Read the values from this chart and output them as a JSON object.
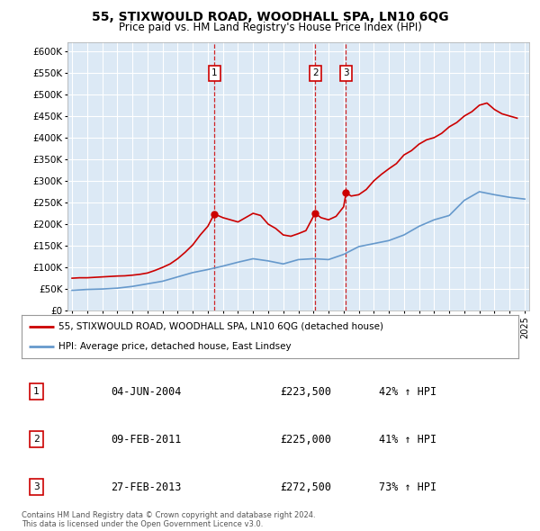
{
  "title": "55, STIXWOULD ROAD, WOODHALL SPA, LN10 6QG",
  "subtitle": "Price paid vs. HM Land Registry's House Price Index (HPI)",
  "legend_line1": "55, STIXWOULD ROAD, WOODHALL SPA, LN10 6QG (detached house)",
  "legend_line2": "HPI: Average price, detached house, East Lindsey",
  "sales": [
    {
      "num": 1,
      "date": "04-JUN-2004",
      "price": 223500,
      "price_str": "£223,500",
      "pct": "42%",
      "dir": "↑",
      "year": 2004.43
    },
    {
      "num": 2,
      "date": "09-FEB-2011",
      "price": 225000,
      "price_str": "£225,000",
      "pct": "41%",
      "dir": "↑",
      "year": 2011.11
    },
    {
      "num": 3,
      "date": "27-FEB-2013",
      "price": 272500,
      "price_str": "£272,500",
      "pct": "73%",
      "dir": "↑",
      "year": 2013.16
    }
  ],
  "footnote1": "Contains HM Land Registry data © Crown copyright and database right 2024.",
  "footnote2": "This data is licensed under the Open Government Licence v3.0.",
  "background_color": "#dce9f5",
  "plot_bg_color": "#dce9f5",
  "red_color": "#cc0000",
  "blue_color": "#6699cc",
  "ylim": [
    0,
    620000
  ],
  "yticks": [
    0,
    50000,
    100000,
    150000,
    200000,
    250000,
    300000,
    350000,
    400000,
    450000,
    500000,
    550000,
    600000
  ],
  "hpi_years": [
    1995,
    1996,
    1997,
    1998,
    1999,
    2000,
    2001,
    2002,
    2003,
    2004,
    2005,
    2006,
    2007,
    2008,
    2009,
    2010,
    2011,
    2012,
    2013,
    2014,
    2015,
    2016,
    2017,
    2018,
    2019,
    2020,
    2021,
    2022,
    2023,
    2024,
    2025
  ],
  "hpi_values": [
    47000,
    49000,
    50000,
    52000,
    56000,
    62000,
    68000,
    78000,
    88000,
    95000,
    103000,
    112000,
    120000,
    115000,
    108000,
    118000,
    120000,
    118000,
    130000,
    148000,
    155000,
    162000,
    175000,
    195000,
    210000,
    220000,
    255000,
    275000,
    268000,
    262000,
    258000
  ],
  "red_years": [
    1995,
    1995.5,
    1996,
    1996.5,
    1997,
    1997.5,
    1998,
    1998.5,
    1999,
    1999.5,
    2000,
    2000.5,
    2001,
    2001.5,
    2002,
    2002.5,
    2003,
    2003.5,
    2004,
    2004.43,
    2005,
    2005.5,
    2006,
    2006.5,
    2007,
    2007.5,
    2008,
    2008.5,
    2009,
    2009.5,
    2010,
    2010.5,
    2011,
    2011.11,
    2011.5,
    2012,
    2012.5,
    2013,
    2013.16,
    2013.5,
    2014,
    2014.5,
    2015,
    2015.5,
    2016,
    2016.5,
    2017,
    2017.5,
    2018,
    2018.5,
    2019,
    2019.5,
    2020,
    2020.5,
    2021,
    2021.5,
    2022,
    2022.5,
    2023,
    2023.5,
    2024,
    2024.5
  ],
  "red_values": [
    75000,
    76000,
    76000,
    77000,
    78000,
    79000,
    80000,
    80500,
    82000,
    84000,
    87000,
    93000,
    100000,
    108000,
    120000,
    135000,
    152000,
    175000,
    195000,
    223500,
    215000,
    210000,
    205000,
    215000,
    225000,
    220000,
    200000,
    190000,
    175000,
    172000,
    178000,
    185000,
    218000,
    225000,
    215000,
    210000,
    218000,
    240000,
    272500,
    265000,
    268000,
    280000,
    300000,
    315000,
    328000,
    340000,
    360000,
    370000,
    385000,
    395000,
    400000,
    410000,
    425000,
    435000,
    450000,
    460000,
    475000,
    480000,
    465000,
    455000,
    450000,
    445000
  ]
}
